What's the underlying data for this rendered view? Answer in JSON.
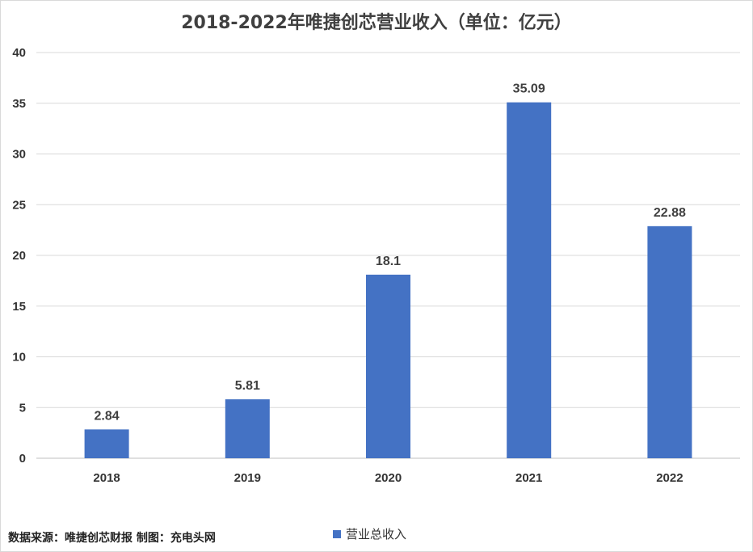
{
  "chart_data": {
    "type": "bar",
    "title": "2018-2022年唯捷创芯营业收入（单位：亿元）",
    "categories": [
      "2018",
      "2019",
      "2020",
      "2021",
      "2022"
    ],
    "series": [
      {
        "name": "营业总收入",
        "values": [
          2.84,
          5.81,
          18.1,
          35.09,
          22.88
        ],
        "data_labels": [
          "2.84",
          "5.81",
          "18.1",
          "35.09",
          "22.88"
        ]
      }
    ],
    "ylim": [
      0,
      40
    ],
    "yticks": [
      0,
      5,
      10,
      15,
      20,
      25,
      30,
      35,
      40
    ],
    "grid": true,
    "legend_position": "bottom",
    "bar_color": "#4472c4"
  },
  "footer": {
    "source_text": "数据来源：唯捷创芯财报  制图：充电头网"
  }
}
